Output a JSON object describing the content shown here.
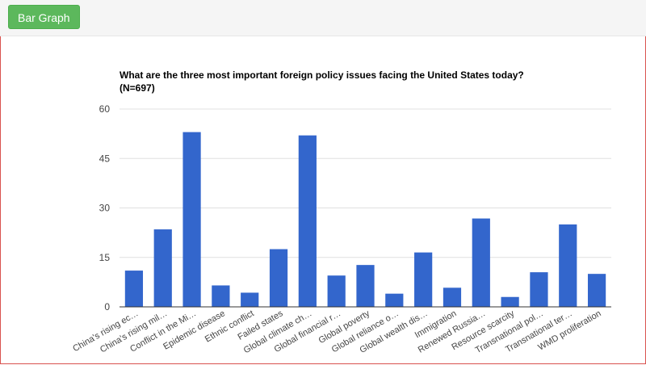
{
  "toolbar": {
    "button_label": "Bar Graph"
  },
  "colors": {
    "bar": "#3366cc",
    "button": "#5cb85c",
    "border": "#d9534f"
  },
  "chart_data": {
    "type": "bar",
    "title": "What are the three most important foreign policy issues facing the United States today?",
    "subtitle": "(N=697)",
    "xlabel": "",
    "ylabel": "",
    "ylim": [
      0,
      60
    ],
    "yticks": [
      0,
      15,
      30,
      45,
      60
    ],
    "grid": true,
    "categories": [
      "China's rising ec…",
      "China's rising mil…",
      "Conflict in the Mi…",
      "Epidemic disease",
      "Ethnic conflict",
      "Failed states",
      "Global climate ch…",
      "Global financial r…",
      "Global poverty",
      "Global reliance o…",
      "Global wealth dis…",
      "Immigration",
      "Renewed Russia…",
      "Resource scarcity",
      "Transnational pol…",
      "Transnational ter…",
      "WMD proliferation"
    ],
    "values": [
      11,
      23.5,
      53,
      6.5,
      4.3,
      17.5,
      52,
      9.5,
      12.7,
      4,
      16.5,
      5.8,
      26.8,
      3,
      10.5,
      25,
      10
    ]
  }
}
